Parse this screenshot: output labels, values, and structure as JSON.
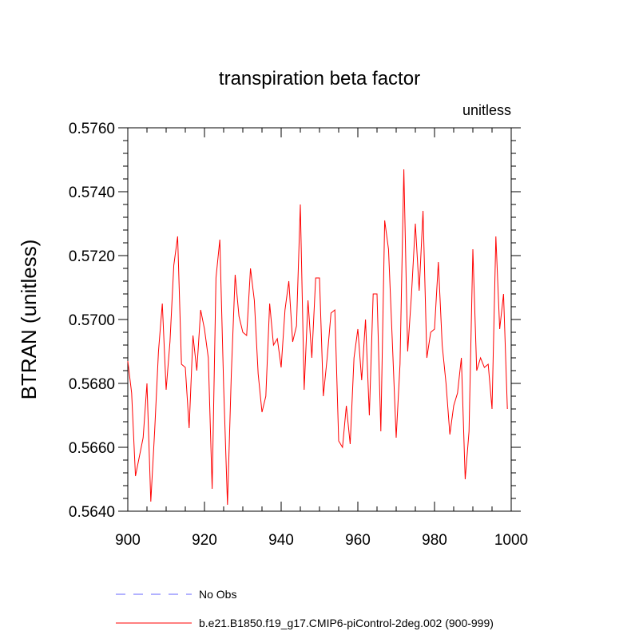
{
  "chart_data": {
    "type": "line",
    "title": "transpiration beta factor",
    "units_label": "unitless",
    "xlabel": "",
    "ylabel": "BTRAN  (unitless)",
    "xlim": [
      900,
      1000
    ],
    "ylim": [
      0.564,
      0.576
    ],
    "x_ticks": [
      900,
      920,
      940,
      960,
      980,
      1000
    ],
    "x_tick_labels": [
      "900",
      "920",
      "940",
      "960",
      "980",
      "1000"
    ],
    "y_ticks": [
      0.564,
      0.566,
      0.568,
      0.57,
      0.572,
      0.574,
      0.576
    ],
    "y_tick_labels": [
      "0.5640",
      "0.5660",
      "0.5680",
      "0.5700",
      "0.5720",
      "0.5740",
      "0.5760"
    ],
    "grid": false,
    "legend_position": "bottom",
    "series": [
      {
        "name": "No Obs",
        "color": "#6666ff",
        "dashed": true,
        "values": []
      },
      {
        "name": "b.e21.B1850.f19_g17.CMIP6-piControl-2deg.002 (900-999)",
        "color": "#ff0000",
        "dashed": false,
        "x": [
          900,
          901,
          902,
          903,
          904,
          905,
          906,
          907,
          908,
          909,
          910,
          911,
          912,
          913,
          914,
          915,
          916,
          917,
          918,
          919,
          920,
          921,
          922,
          923,
          924,
          925,
          926,
          927,
          928,
          929,
          930,
          931,
          932,
          933,
          934,
          935,
          936,
          937,
          938,
          939,
          940,
          941,
          942,
          943,
          944,
          945,
          946,
          947,
          948,
          949,
          950,
          951,
          952,
          953,
          954,
          955,
          956,
          957,
          958,
          959,
          960,
          961,
          962,
          963,
          964,
          965,
          966,
          967,
          968,
          969,
          970,
          971,
          972,
          973,
          974,
          975,
          976,
          977,
          978,
          979,
          980,
          981,
          982,
          983,
          984,
          985,
          986,
          987,
          988,
          989,
          990,
          991,
          992,
          993,
          994,
          995,
          996,
          997,
          998,
          999
        ],
        "values": [
          0.5687,
          0.5677,
          0.5651,
          0.5657,
          0.5663,
          0.568,
          0.5643,
          0.5665,
          0.569,
          0.5705,
          0.5678,
          0.5693,
          0.5717,
          0.5726,
          0.5686,
          0.5685,
          0.5666,
          0.5695,
          0.5684,
          0.5703,
          0.5697,
          0.5688,
          0.5647,
          0.5713,
          0.5725,
          0.5679,
          0.5642,
          0.5683,
          0.5714,
          0.5701,
          0.5696,
          0.5695,
          0.5716,
          0.5706,
          0.5683,
          0.5671,
          0.5676,
          0.5705,
          0.5692,
          0.5694,
          0.5685,
          0.5703,
          0.5712,
          0.5693,
          0.5698,
          0.5736,
          0.5678,
          0.5706,
          0.5688,
          0.5713,
          0.5713,
          0.5676,
          0.5688,
          0.5702,
          0.5703,
          0.5662,
          0.566,
          0.5673,
          0.5661,
          0.5688,
          0.5697,
          0.5681,
          0.57,
          0.567,
          0.5708,
          0.5708,
          0.5665,
          0.5731,
          0.5722,
          0.5693,
          0.5663,
          0.5686,
          0.5747,
          0.569,
          0.5708,
          0.573,
          0.5709,
          0.5734,
          0.5688,
          0.5696,
          0.5697,
          0.5718,
          0.5692,
          0.568,
          0.5664,
          0.5673,
          0.5677,
          0.5688,
          0.565,
          0.5665,
          0.5722,
          0.5684,
          0.5688,
          0.5685,
          0.5686,
          0.5672,
          0.5726,
          0.5697,
          0.5708,
          0.5672
        ]
      }
    ]
  }
}
